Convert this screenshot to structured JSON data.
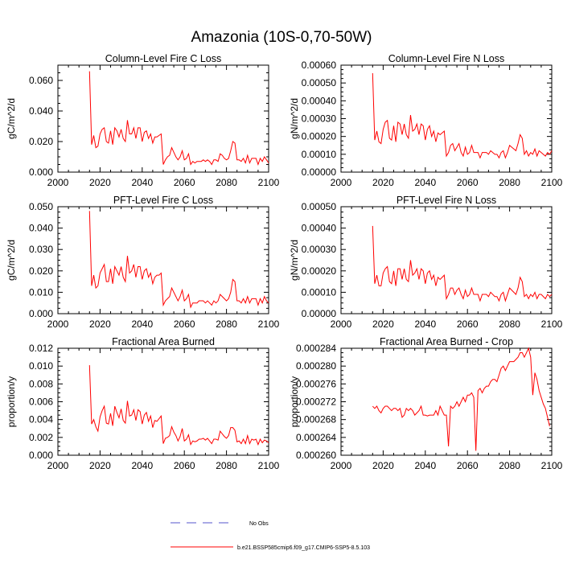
{
  "page_title": "Amazonia (10S-0,70-50W)",
  "colors": {
    "model": "#ff0000",
    "obs": "#5555cc",
    "axis": "#000000"
  },
  "legend": {
    "obs_label": "No Obs",
    "model_label": "b.e21.BSSP585cmip6.f09_g17.CMIP6-SSP5-8.5.103"
  },
  "chart_data": [
    {
      "type": "line",
      "title": "Column-Level Fire C Loss",
      "ylabel": "gC/m^2/d",
      "xlim": [
        2000,
        2100
      ],
      "ylim": [
        0,
        0.07
      ],
      "xticks": [
        "2000",
        "2020",
        "2040",
        "2060",
        "2080",
        "2100"
      ],
      "yticks": [
        "0.000",
        "0.020",
        "0.040",
        "0.060"
      ],
      "ytick_values": [
        0,
        0.02,
        0.04,
        0.06
      ],
      "series": [
        {
          "x_start": 2015,
          "x_step": 1,
          "values": [
            0.066,
            0.018,
            0.024,
            0.016,
            0.017,
            0.025,
            0.028,
            0.029,
            0.02,
            0.019,
            0.027,
            0.018,
            0.029,
            0.027,
            0.023,
            0.028,
            0.022,
            0.02,
            0.034,
            0.025,
            0.025,
            0.029,
            0.022,
            0.029,
            0.029,
            0.02,
            0.026,
            0.027,
            0.022,
            0.025,
            0.019,
            0.023,
            0.023,
            0.024,
            0.025,
            0.005,
            0.008,
            0.01,
            0.011,
            0.016,
            0.013,
            0.01,
            0.008,
            0.01,
            0.014,
            0.008,
            0.009,
            0.012,
            0.005,
            0.007,
            0.006,
            0.007,
            0.007,
            0.007,
            0.008,
            0.007,
            0.008,
            0.007,
            0.005,
            0.008,
            0.008,
            0.007,
            0.012,
            0.011,
            0.009,
            0.008,
            0.009,
            0.014,
            0.02,
            0.019,
            0.008,
            0.008,
            0.007,
            0.009,
            0.006,
            0.011,
            0.006,
            0.009,
            0.009,
            0.009,
            0.005,
            0.009,
            0.007,
            0.01,
            0.008,
            0.006
          ]
        }
      ]
    },
    {
      "type": "line",
      "title": "Column-Level Fire N Loss",
      "ylabel": "gN/m^2/d",
      "xlim": [
        2000,
        2100
      ],
      "ylim": [
        0,
        0.0006
      ],
      "xticks": [
        "2000",
        "2020",
        "2040",
        "2060",
        "2080",
        "2100"
      ],
      "yticks": [
        "0.00000",
        "0.00010",
        "0.00020",
        "0.00030",
        "0.00040",
        "0.00050",
        "0.00060"
      ],
      "ytick_values": [
        0,
        0.0001,
        0.0002,
        0.0003,
        0.0004,
        0.0005,
        0.0006
      ],
      "series": [
        {
          "x_start": 2015,
          "x_step": 1,
          "values": [
            0.000555,
            0.00018,
            0.00023,
            0.00017,
            0.00016,
            0.00024,
            0.00028,
            0.00029,
            0.00019,
            0.00018,
            0.00026,
            0.00017,
            0.00028,
            0.00027,
            0.00021,
            0.00027,
            0.00021,
            0.00019,
            0.00032,
            0.00023,
            0.00024,
            0.00027,
            0.00021,
            0.00027,
            0.00026,
            0.00018,
            0.00024,
            0.00026,
            0.0002,
            0.00023,
            0.00017,
            0.00022,
            0.00021,
            0.00022,
            0.00023,
            9e-05,
            0.00011,
            0.00015,
            0.00016,
            0.00012,
            0.00014,
            0.00016,
            0.00011,
            9e-05,
            0.00014,
            0.0001,
            0.00011,
            0.00015,
            0.00011,
            0.00011,
            0.00011,
            8e-05,
            0.00011,
            0.00011,
            0.00011,
            0.0001,
            0.00012,
            0.00011,
            0.0001,
            0.0001,
            8e-05,
            0.00011,
            0.00012,
            8e-05,
            0.00011,
            0.00015,
            0.00014,
            0.00013,
            0.00012,
            0.00016,
            0.00021,
            0.00019,
            0.0001,
            0.00012,
            9e-05,
            0.00011,
            0.0001,
            0.00013,
            9e-05,
            0.00012,
            0.00011,
            0.0001,
            9e-05,
            0.00011,
            0.0001,
            0.00012
          ]
        }
      ]
    },
    {
      "type": "line",
      "title": "PFT-Level Fire C Loss",
      "ylabel": "gC/m^2/d",
      "xlim": [
        2000,
        2100
      ],
      "ylim": [
        0,
        0.05
      ],
      "xticks": [
        "2000",
        "2020",
        "2040",
        "2060",
        "2080",
        "2100"
      ],
      "yticks": [
        "0.000",
        "0.010",
        "0.020",
        "0.030",
        "0.040",
        "0.050"
      ],
      "ytick_values": [
        0,
        0.01,
        0.02,
        0.03,
        0.04,
        0.05
      ],
      "series": [
        {
          "x_start": 2015,
          "x_step": 1,
          "values": [
            0.048,
            0.013,
            0.018,
            0.012,
            0.013,
            0.019,
            0.021,
            0.023,
            0.015,
            0.015,
            0.021,
            0.014,
            0.022,
            0.02,
            0.018,
            0.022,
            0.017,
            0.015,
            0.027,
            0.019,
            0.02,
            0.023,
            0.017,
            0.022,
            0.022,
            0.016,
            0.02,
            0.021,
            0.017,
            0.019,
            0.014,
            0.017,
            0.018,
            0.018,
            0.019,
            0.004,
            0.006,
            0.007,
            0.008,
            0.012,
            0.01,
            0.008,
            0.006,
            0.008,
            0.011,
            0.006,
            0.007,
            0.009,
            0.003,
            0.005,
            0.005,
            0.005,
            0.006,
            0.006,
            0.006,
            0.005,
            0.006,
            0.005,
            0.004,
            0.006,
            0.005,
            0.006,
            0.009,
            0.008,
            0.007,
            0.006,
            0.007,
            0.01,
            0.016,
            0.015,
            0.006,
            0.006,
            0.005,
            0.007,
            0.005,
            0.008,
            0.005,
            0.007,
            0.007,
            0.007,
            0.004,
            0.007,
            0.005,
            0.008,
            0.006,
            0.005
          ]
        }
      ]
    },
    {
      "type": "line",
      "title": "PFT-Level Fire N Loss",
      "ylabel": "gN/m^2/d",
      "xlim": [
        2000,
        2100
      ],
      "ylim": [
        0,
        0.0005
      ],
      "xticks": [
        "2000",
        "2020",
        "2040",
        "2060",
        "2080",
        "2100"
      ],
      "yticks": [
        "0.00000",
        "0.00010",
        "0.00020",
        "0.00030",
        "0.00040",
        "0.00050"
      ],
      "ytick_values": [
        0,
        0.0001,
        0.0002,
        0.0003,
        0.0004,
        0.0005
      ],
      "series": [
        {
          "x_start": 2015,
          "x_step": 1,
          "values": [
            0.00041,
            0.00014,
            0.00018,
            0.00013,
            0.00013,
            0.00019,
            0.00021,
            0.00022,
            0.00015,
            0.00014,
            0.0002,
            0.00013,
            0.00021,
            0.00021,
            0.00016,
            0.00021,
            0.00016,
            0.00015,
            0.00025,
            0.00018,
            0.00019,
            0.00021,
            0.00016,
            0.00021,
            0.0002,
            0.00014,
            0.00019,
            0.0002,
            0.00016,
            0.00018,
            0.00013,
            0.00017,
            0.00016,
            0.00017,
            0.00018,
            7e-05,
            9e-05,
            0.00012,
            0.00012,
            9e-05,
            0.00011,
            0.00012,
            9e-05,
            7e-05,
            0.00011,
            8e-05,
            9e-05,
            0.00012,
            9e-05,
            9e-05,
            9e-05,
            6e-05,
            9e-05,
            9e-05,
            9e-05,
            8e-05,
            0.0001,
            9e-05,
            8e-05,
            8e-05,
            6e-05,
            9e-05,
            0.0001,
            6e-05,
            9e-05,
            0.00012,
            0.00011,
            0.0001,
            9e-05,
            0.00012,
            0.00017,
            0.00015,
            8e-05,
            9e-05,
            7e-05,
            9e-05,
            8e-05,
            0.0001,
            7e-05,
            9e-05,
            9e-05,
            8e-05,
            7e-05,
            9e-05,
            8e-05,
            9e-05
          ]
        }
      ]
    },
    {
      "type": "line",
      "title": "Fractional Area Burned",
      "ylabel": "proportion/y",
      "xlim": [
        2000,
        2100
      ],
      "ylim": [
        0,
        0.012
      ],
      "xticks": [
        "2000",
        "2020",
        "2040",
        "2060",
        "2080",
        "2100"
      ],
      "yticks": [
        "0.000",
        "0.002",
        "0.004",
        "0.006",
        "0.008",
        "0.010",
        "0.012"
      ],
      "ytick_values": [
        0,
        0.002,
        0.004,
        0.006,
        0.008,
        0.01,
        0.012
      ],
      "series": [
        {
          "x_start": 2015,
          "x_step": 1,
          "values": [
            0.0101,
            0.0035,
            0.004,
            0.0032,
            0.0027,
            0.0043,
            0.005,
            0.0055,
            0.0036,
            0.0035,
            0.0047,
            0.0033,
            0.0055,
            0.0048,
            0.0042,
            0.0052,
            0.0039,
            0.0036,
            0.0061,
            0.0044,
            0.0045,
            0.0051,
            0.0039,
            0.0051,
            0.0049,
            0.0035,
            0.0045,
            0.0048,
            0.0038,
            0.0044,
            0.0031,
            0.0039,
            0.0038,
            0.0041,
            0.0044,
            0.0013,
            0.0019,
            0.002,
            0.0022,
            0.0032,
            0.0026,
            0.0022,
            0.0016,
            0.0021,
            0.003,
            0.0016,
            0.0018,
            0.0023,
            0.0012,
            0.0016,
            0.0015,
            0.0016,
            0.0018,
            0.0018,
            0.0019,
            0.0017,
            0.0019,
            0.0016,
            0.0013,
            0.0018,
            0.0018,
            0.0017,
            0.0027,
            0.0024,
            0.0021,
            0.0019,
            0.0022,
            0.0031,
            0.0031,
            0.0028,
            0.0015,
            0.0016,
            0.0013,
            0.0018,
            0.0013,
            0.0022,
            0.0013,
            0.0018,
            0.0017,
            0.0018,
            0.0012,
            0.0018,
            0.0014,
            0.0017,
            0.0016,
            0.0014
          ]
        }
      ]
    },
    {
      "type": "line",
      "title": "Fractional Area Burned - Crop",
      "ylabel": "proportion/y",
      "xlim": [
        2000,
        2100
      ],
      "ylim": [
        0.00026,
        0.000284
      ],
      "xticks": [
        "2000",
        "2020",
        "2040",
        "2060",
        "2080",
        "2100"
      ],
      "yticks": [
        "0.000260",
        "0.000264",
        "0.000268",
        "0.000272",
        "0.000276",
        "0.000280",
        "0.000284"
      ],
      "ytick_values": [
        0.00026,
        0.000264,
        0.000268,
        0.000272,
        0.000276,
        0.00028,
        0.000284
      ],
      "series": [
        {
          "x_start": 2015,
          "x_step": 1,
          "values": [
            0.000271,
            0.0002705,
            0.000271,
            0.00027,
            0.0002695,
            0.0002705,
            0.000271,
            0.000271,
            0.0002705,
            0.00027,
            0.0002705,
            0.0002705,
            0.00027,
            0.0002705,
            0.0002685,
            0.000269,
            0.0002705,
            0.00027,
            0.0002705,
            0.00027,
            0.000269,
            0.0002695,
            0.00027,
            0.000271,
            0.000269,
            0.000269,
            0.0002688,
            0.000269,
            0.000269,
            0.000269,
            0.00027,
            0.000269,
            0.000271,
            0.00027,
            0.000269,
            0.000269,
            0.000262,
            0.000271,
            0.0002705,
            0.000271,
            0.000272,
            0.000271,
            0.000272,
            0.000273,
            0.000272,
            0.0002735,
            0.0002735,
            0.000274,
            0.000273,
            0.000261,
            0.0002745,
            0.000275,
            0.000274,
            0.000275,
            0.0002755,
            0.0002755,
            0.0002765,
            0.000277,
            0.000277,
            0.0002765,
            0.000278,
            0.0002795,
            0.00028,
            0.000279,
            0.00028,
            0.000281,
            0.000281,
            0.000281,
            0.0002815,
            0.000282,
            0.000283,
            0.000283,
            0.000282,
            0.000283,
            0.000284,
            0.000282,
            0.0002735,
            0.0002785,
            0.000277,
            0.0002745,
            0.000273,
            0.0002715,
            0.0002705,
            0.0002685,
            0.0002665
          ]
        }
      ]
    }
  ]
}
